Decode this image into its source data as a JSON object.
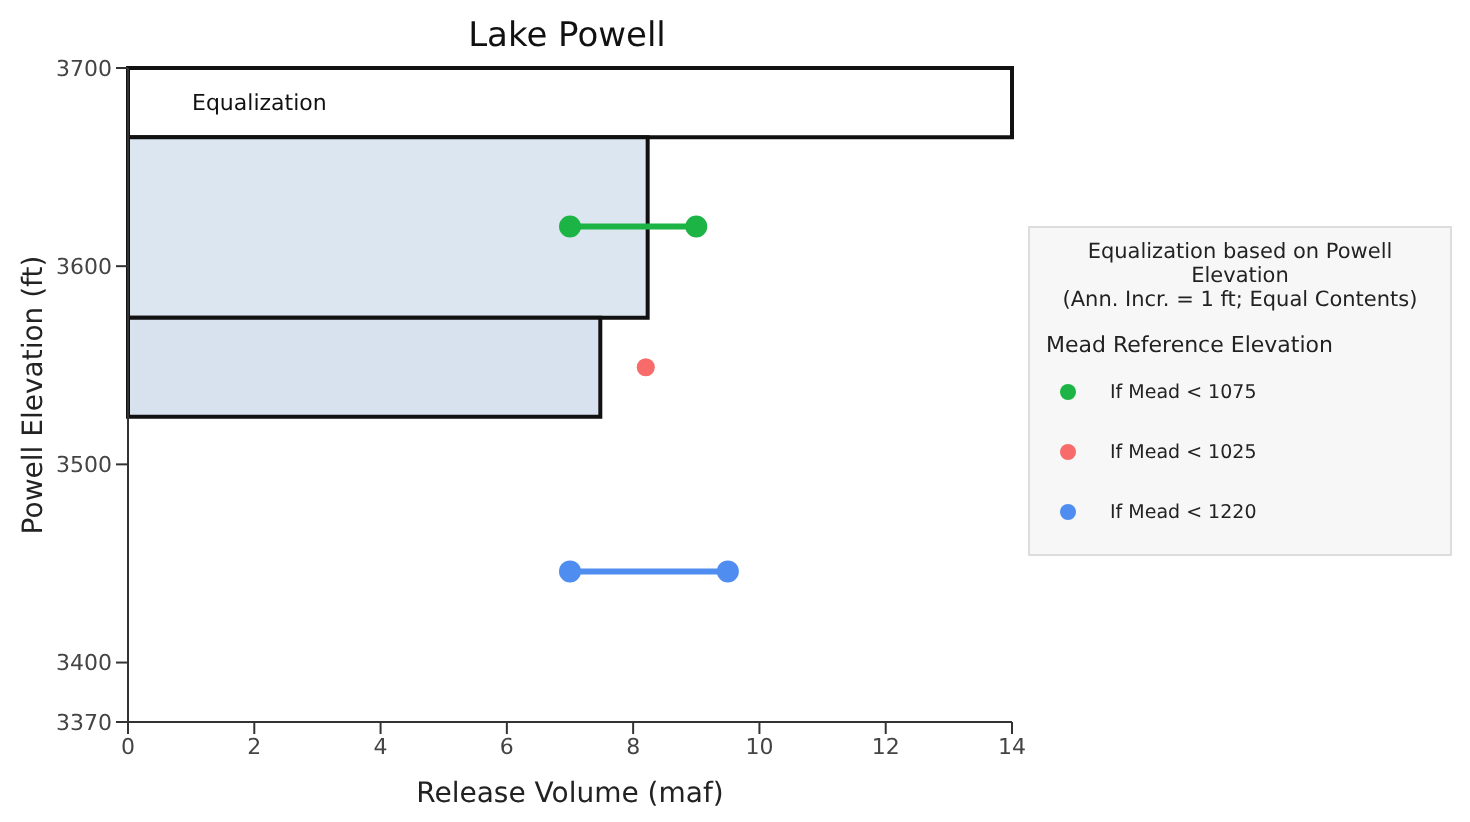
{
  "chart_data": {
    "type": "line",
    "title": "Lake Powell",
    "xlabel": "Release Volume (maf)",
    "ylabel": "Powell Elevation (ft)",
    "legend_title": "Equalization based on Powell Elevation\n(Ann. Incr. = 1 ft; Equal Contents)",
    "xlim": [
      0,
      14
    ],
    "xticks": [
      0,
      2,
      4,
      6,
      8,
      10,
      12,
      14
    ],
    "ylim": [
      3370,
      3700
    ],
    "yticks": [
      3370,
      3400,
      3500,
      3600,
      3700
    ],
    "bands": [
      {
        "axis": "y",
        "from": 3665,
        "to": 3700,
        "label": "Equalization",
        "color": "#ffffff"
      }
    ],
    "series": [
      {
        "color": "#dce6f1",
        "x": [
          0,
          8.23
        ],
        "values": [
          null,
          null
        ],
        "lower": [
          3574,
          3574
        ],
        "upper": [
          3665,
          3665
        ]
      },
      {
        "color": "#d8e2ee",
        "x": [
          0,
          7.48
        ],
        "values": [
          null,
          null
        ],
        "lower": [
          3524,
          3524
        ],
        "upper": [
          3574,
          3574
        ]
      },
      {
        "name": "If Mead < 1075",
        "color": "#1db446",
        "marker": "circle",
        "x": [
          7,
          9
        ],
        "values": [
          3620,
          3620
        ]
      },
      {
        "type": "scatter",
        "name": "If Mead < 1025",
        "color": "#f76b6b",
        "marker": "circle",
        "x": [
          8.2
        ],
        "values": [
          3549
        ]
      },
      {
        "name": "If Mead < 1220",
        "color": "#4f8ef0",
        "marker": "circle",
        "x": [
          7,
          9.5
        ],
        "values": [
          3446,
          3446
        ]
      }
    ],
    "annotations": [
      "Mead Reference Elevation"
    ],
    "legend": "right",
    "grid": false
  }
}
